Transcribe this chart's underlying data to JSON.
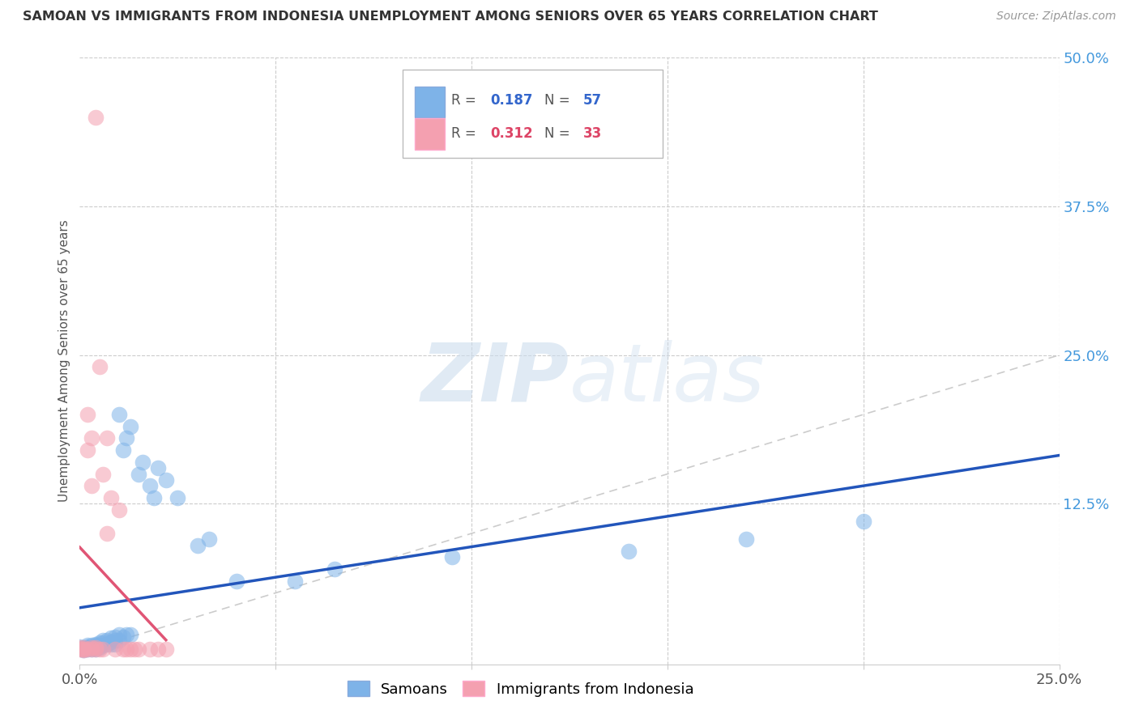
{
  "title": "SAMOAN VS IMMIGRANTS FROM INDONESIA UNEMPLOYMENT AMONG SENIORS OVER 65 YEARS CORRELATION CHART",
  "source": "Source: ZipAtlas.com",
  "ylabel": "Unemployment Among Seniors over 65 years",
  "xlim": [
    0.0,
    0.25
  ],
  "ylim": [
    -0.01,
    0.5
  ],
  "xtick_positions": [
    0.0,
    0.05,
    0.1,
    0.15,
    0.2,
    0.25
  ],
  "xticklabels": [
    "0.0%",
    "",
    "",
    "",
    "",
    "25.0%"
  ],
  "yticks_right": [
    0.0,
    0.125,
    0.25,
    0.375,
    0.5
  ],
  "yticklabels_right": [
    "",
    "12.5%",
    "25.0%",
    "37.5%",
    "50.0%"
  ],
  "legend_labels": [
    "Samoans",
    "Immigrants from Indonesia"
  ],
  "blue_R": "0.187",
  "blue_N": "57",
  "pink_R": "0.312",
  "pink_N": "33",
  "blue_color": "#7EB3E8",
  "pink_color": "#F4A0B0",
  "blue_line_color": "#2255BB",
  "pink_line_color": "#E05575",
  "diagonal_color": "#CCCCCC",
  "watermark_zip": "ZIP",
  "watermark_atlas": "atlas",
  "blue_points_x": [
    0.0,
    0.001,
    0.001,
    0.001,
    0.002,
    0.002,
    0.002,
    0.002,
    0.003,
    0.003,
    0.003,
    0.003,
    0.004,
    0.004,
    0.004,
    0.004,
    0.004,
    0.005,
    0.005,
    0.005,
    0.005,
    0.006,
    0.006,
    0.006,
    0.007,
    0.007,
    0.008,
    0.008,
    0.008,
    0.009,
    0.009,
    0.009,
    0.01,
    0.01,
    0.01,
    0.011,
    0.011,
    0.012,
    0.012,
    0.013,
    0.013,
    0.015,
    0.016,
    0.018,
    0.019,
    0.02,
    0.022,
    0.025,
    0.03,
    0.033,
    0.04,
    0.055,
    0.065,
    0.095,
    0.14,
    0.17,
    0.2
  ],
  "blue_points_y": [
    0.005,
    0.003,
    0.004,
    0.002,
    0.005,
    0.004,
    0.006,
    0.003,
    0.005,
    0.004,
    0.003,
    0.006,
    0.007,
    0.005,
    0.004,
    0.006,
    0.003,
    0.008,
    0.006,
    0.005,
    0.004,
    0.01,
    0.008,
    0.006,
    0.01,
    0.007,
    0.012,
    0.009,
    0.007,
    0.013,
    0.01,
    0.007,
    0.2,
    0.015,
    0.01,
    0.17,
    0.013,
    0.18,
    0.015,
    0.19,
    0.015,
    0.15,
    0.16,
    0.14,
    0.13,
    0.155,
    0.145,
    0.13,
    0.09,
    0.095,
    0.06,
    0.06,
    0.07,
    0.08,
    0.085,
    0.095,
    0.11
  ],
  "pink_points_x": [
    0.0,
    0.0,
    0.001,
    0.001,
    0.001,
    0.001,
    0.002,
    0.002,
    0.002,
    0.003,
    0.003,
    0.003,
    0.003,
    0.004,
    0.004,
    0.004,
    0.005,
    0.005,
    0.006,
    0.006,
    0.007,
    0.007,
    0.008,
    0.009,
    0.01,
    0.011,
    0.012,
    0.013,
    0.014,
    0.015,
    0.018,
    0.02,
    0.022
  ],
  "pink_points_y": [
    0.003,
    0.004,
    0.003,
    0.004,
    0.002,
    0.003,
    0.17,
    0.2,
    0.003,
    0.14,
    0.18,
    0.003,
    0.004,
    0.45,
    0.003,
    0.004,
    0.24,
    0.003,
    0.15,
    0.003,
    0.18,
    0.1,
    0.13,
    0.003,
    0.12,
    0.003,
    0.003,
    0.003,
    0.003,
    0.003,
    0.003,
    0.003,
    0.003
  ]
}
